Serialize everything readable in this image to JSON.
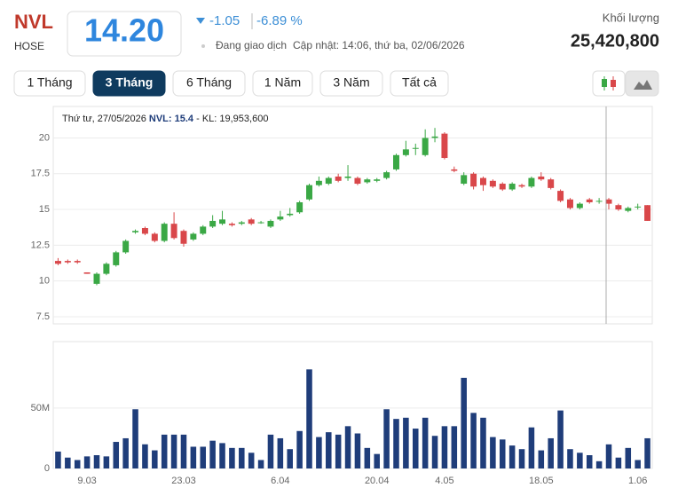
{
  "header": {
    "symbol": "NVL",
    "exchange": "HOSE",
    "price": "14.20",
    "change": "-1.05",
    "change_percent": "-6.89 %",
    "status": "Đang giao dịch",
    "updated": "Cập nhật: 14:06, thứ ba, 02/06/2026",
    "volume_label": "Khối lượng",
    "volume": "25,420,800"
  },
  "ranges": [
    "1 Tháng",
    "3 Tháng",
    "6 Tháng",
    "1 Năm",
    "3 Năm",
    "Tất cả"
  ],
  "active_range": "3 Tháng",
  "tooltip": {
    "date": "Thứ tư, 27/05/2026",
    "price": "NVL: 15.4",
    "volume": "- KL: 19,953,600"
  },
  "chart_data": [
    {
      "type": "candlestick",
      "up_color": "#3aa845",
      "down_color": "#d9474a",
      "ylim": [
        7,
        22.2
      ],
      "yticks": [
        7.5,
        10,
        12.5,
        15,
        17.5,
        20
      ],
      "open": [
        11.4,
        11.4,
        11.4,
        10.6,
        9.8,
        10.5,
        11.1,
        12.0,
        13.4,
        13.7,
        13.3,
        12.8,
        14.0,
        13.5,
        12.9,
        13.3,
        13.8,
        14.0,
        14.0,
        14.0,
        14.3,
        14.1,
        13.8,
        14.3,
        14.6,
        14.8,
        15.7,
        16.7,
        16.8,
        17.3,
        17.2,
        17.2,
        16.9,
        17.0,
        17.2,
        17.8,
        18.8,
        19.3,
        18.8,
        20.0,
        20.3,
        17.8,
        16.8,
        17.5,
        17.2,
        17.0,
        16.8,
        16.4,
        16.7,
        16.6,
        17.3,
        17.1,
        16.3,
        15.7,
        15.1,
        15.7,
        15.6,
        15.7,
        15.3,
        14.9,
        15.2,
        15.3
      ],
      "high": [
        11.6,
        11.5,
        11.5,
        10.6,
        10.6,
        11.3,
        12.1,
        12.9,
        13.6,
        13.8,
        13.4,
        14.1,
        14.8,
        13.6,
        13.4,
        13.9,
        14.6,
        14.9,
        14.1,
        14.2,
        14.4,
        14.2,
        14.3,
        14.9,
        15.1,
        15.6,
        16.8,
        17.3,
        17.3,
        17.5,
        18.1,
        17.3,
        17.2,
        17.2,
        17.7,
        18.9,
        19.8,
        19.6,
        20.6,
        20.7,
        20.4,
        18.0,
        17.6,
        17.6,
        17.3,
        17.1,
        16.9,
        16.9,
        16.8,
        17.3,
        17.6,
        17.2,
        16.4,
        15.8,
        15.5,
        15.8,
        15.8,
        15.8,
        15.4,
        15.2,
        15.4,
        15.3
      ],
      "low": [
        11.1,
        11.2,
        11.2,
        10.5,
        9.7,
        10.4,
        11.0,
        11.9,
        13.3,
        13.2,
        12.7,
        12.7,
        12.9,
        12.4,
        12.8,
        13.2,
        13.7,
        13.9,
        13.8,
        13.9,
        13.9,
        14.0,
        13.7,
        14.2,
        14.5,
        14.7,
        15.6,
        16.6,
        16.7,
        16.9,
        17.0,
        16.7,
        16.8,
        16.9,
        17.1,
        17.7,
        18.7,
        18.8,
        18.7,
        19.7,
        18.5,
        17.6,
        16.7,
        16.4,
        16.3,
        16.5,
        16.3,
        16.3,
        16.5,
        16.5,
        17.0,
        16.4,
        15.5,
        15.0,
        15.0,
        15.4,
        15.4,
        15.0,
        14.9,
        14.8,
        15.0,
        14.2
      ],
      "close": [
        11.2,
        11.3,
        11.3,
        10.5,
        10.5,
        11.2,
        12.0,
        12.8,
        13.5,
        13.3,
        12.8,
        14.0,
        13.0,
        12.6,
        13.3,
        13.8,
        14.2,
        14.3,
        13.9,
        14.1,
        14.0,
        14.1,
        14.2,
        14.5,
        14.7,
        15.5,
        16.7,
        17.0,
        17.2,
        17.0,
        17.3,
        16.8,
        17.1,
        17.1,
        17.6,
        18.8,
        19.2,
        19.3,
        20.0,
        20.1,
        18.6,
        17.7,
        17.4,
        16.6,
        16.7,
        16.6,
        16.4,
        16.8,
        16.6,
        17.2,
        17.1,
        16.5,
        15.6,
        15.1,
        15.4,
        15.5,
        15.6,
        15.4,
        15.0,
        15.1,
        15.2,
        14.2
      ]
    },
    {
      "type": "bar",
      "color": "#1f3d7a",
      "categories": [
        null,
        null,
        null,
        "9.03",
        null,
        null,
        null,
        null,
        null,
        null,
        null,
        null,
        null,
        "23.03",
        null,
        null,
        null,
        null,
        null,
        null,
        null,
        null,
        null,
        "6.04",
        null,
        null,
        null,
        null,
        null,
        null,
        null,
        null,
        null,
        "20.04",
        null,
        null,
        null,
        null,
        null,
        null,
        "4.05",
        null,
        null,
        null,
        null,
        null,
        null,
        null,
        null,
        null,
        "18.05",
        null,
        null,
        null,
        null,
        null,
        null,
        null,
        null,
        null,
        "1.06",
        null
      ],
      "values": [
        14000000,
        9000000,
        7000000,
        10000000,
        11000000,
        10000000,
        22000000,
        25000000,
        49000000,
        20000000,
        15000000,
        28000000,
        28000000,
        28000000,
        18000000,
        18000000,
        23000000,
        21000000,
        17000000,
        17000000,
        13000000,
        7000000,
        28000000,
        25000000,
        16000000,
        31000000,
        82000000,
        26000000,
        30000000,
        28000000,
        35000000,
        29000000,
        17000000,
        12000000,
        49000000,
        41000000,
        42000000,
        33000000,
        42000000,
        27000000,
        35000000,
        35000000,
        75000000,
        46000000,
        42000000,
        26000000,
        24000000,
        19000000,
        16000000,
        34000000,
        15000000,
        25000000,
        48000000,
        16000000,
        13000000,
        11000000,
        6000000,
        19953600,
        9000000,
        17000000,
        7000000,
        25000000
      ],
      "ylim": [
        0,
        105000000
      ],
      "yticks": [
        0,
        {
          "value": 50000000,
          "label": "50M"
        }
      ]
    }
  ]
}
